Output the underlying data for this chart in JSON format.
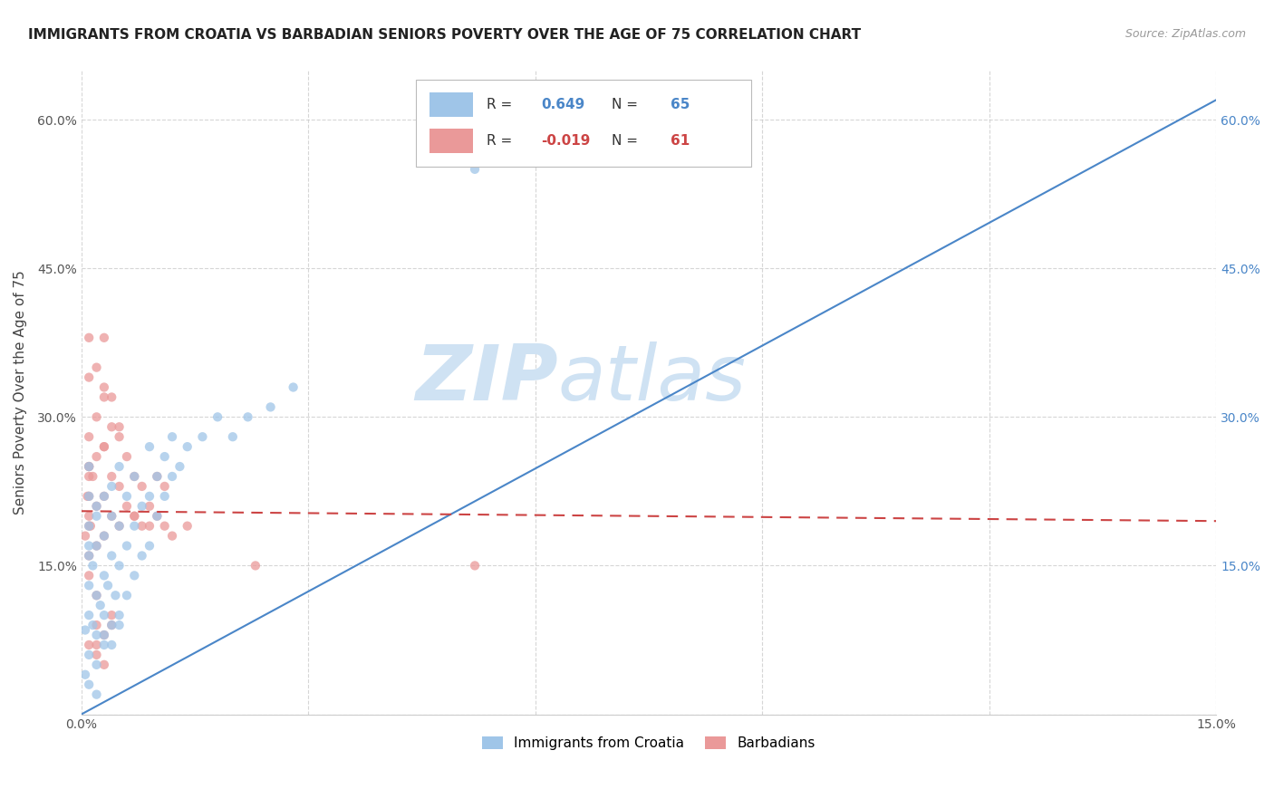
{
  "title": "IMMIGRANTS FROM CROATIA VS BARBADIAN SENIORS POVERTY OVER THE AGE OF 75 CORRELATION CHART",
  "source": "Source: ZipAtlas.com",
  "ylabel": "Seniors Poverty Over the Age of 75",
  "xlim": [
    0.0,
    0.15
  ],
  "ylim": [
    0.0,
    0.65
  ],
  "xticks": [
    0.0,
    0.03,
    0.06,
    0.09,
    0.12,
    0.15
  ],
  "yticks_left": [
    0.0,
    0.15,
    0.3,
    0.45,
    0.6
  ],
  "yticks_right": [
    0.15,
    0.3,
    0.45,
    0.6
  ],
  "xticklabels": [
    "0.0%",
    "",
    "",
    "",
    "",
    "15.0%"
  ],
  "yticklabels_left": [
    "",
    "15.0%",
    "30.0%",
    "45.0%",
    "60.0%"
  ],
  "yticklabels_right": [
    "15.0%",
    "30.0%",
    "45.0%",
    "60.0%"
  ],
  "blue_R": 0.649,
  "blue_N": 65,
  "pink_R": -0.019,
  "pink_N": 61,
  "blue_color": "#9fc5e8",
  "pink_color": "#ea9999",
  "blue_line_color": "#4a86c8",
  "pink_line_color": "#cc4444",
  "pink_line_dash": [
    6,
    4
  ],
  "grid_color": "#cccccc",
  "background_color": "#ffffff",
  "watermark_color": "#cfe2f3",
  "blue_line_x": [
    0.0,
    0.15
  ],
  "blue_line_y": [
    0.0,
    0.62
  ],
  "pink_line_x": [
    0.0,
    0.15
  ],
  "pink_line_y": [
    0.205,
    0.195
  ],
  "legend_label_blue": "Immigrants from Croatia",
  "legend_label_pink": "Barbadians",
  "blue_scatter_x": [
    0.0005,
    0.001,
    0.001,
    0.001,
    0.0015,
    0.0015,
    0.002,
    0.002,
    0.002,
    0.002,
    0.0025,
    0.003,
    0.003,
    0.003,
    0.003,
    0.003,
    0.0035,
    0.004,
    0.004,
    0.004,
    0.004,
    0.0045,
    0.005,
    0.005,
    0.005,
    0.005,
    0.006,
    0.006,
    0.006,
    0.007,
    0.007,
    0.007,
    0.008,
    0.008,
    0.009,
    0.009,
    0.009,
    0.01,
    0.01,
    0.011,
    0.011,
    0.012,
    0.012,
    0.013,
    0.014,
    0.016,
    0.018,
    0.02,
    0.022,
    0.025,
    0.028,
    0.0005,
    0.001,
    0.001,
    0.002,
    0.003,
    0.004,
    0.005,
    0.001,
    0.001,
    0.001,
    0.002,
    0.001,
    0.052,
    0.002
  ],
  "blue_scatter_y": [
    0.085,
    0.1,
    0.13,
    0.16,
    0.09,
    0.15,
    0.08,
    0.12,
    0.17,
    0.2,
    0.11,
    0.07,
    0.1,
    0.14,
    0.18,
    0.22,
    0.13,
    0.09,
    0.16,
    0.2,
    0.23,
    0.12,
    0.1,
    0.15,
    0.19,
    0.25,
    0.12,
    0.17,
    0.22,
    0.14,
    0.19,
    0.24,
    0.16,
    0.21,
    0.17,
    0.22,
    0.27,
    0.2,
    0.24,
    0.22,
    0.26,
    0.24,
    0.28,
    0.25,
    0.27,
    0.28,
    0.3,
    0.28,
    0.3,
    0.31,
    0.33,
    0.04,
    0.03,
    0.06,
    0.05,
    0.08,
    0.07,
    0.09,
    0.19,
    0.22,
    0.25,
    0.21,
    0.17,
    0.55,
    0.02
  ],
  "pink_scatter_x": [
    0.0005,
    0.0008,
    0.001,
    0.001,
    0.001,
    0.0012,
    0.0015,
    0.002,
    0.002,
    0.002,
    0.002,
    0.003,
    0.003,
    0.003,
    0.003,
    0.004,
    0.004,
    0.004,
    0.005,
    0.005,
    0.005,
    0.006,
    0.006,
    0.007,
    0.007,
    0.008,
    0.008,
    0.009,
    0.01,
    0.01,
    0.011,
    0.011,
    0.012,
    0.001,
    0.001,
    0.002,
    0.003,
    0.003,
    0.004,
    0.001,
    0.001,
    0.002,
    0.001,
    0.001,
    0.001,
    0.023,
    0.052,
    0.003,
    0.002,
    0.002,
    0.003,
    0.004,
    0.005,
    0.007,
    0.009,
    0.014,
    0.001,
    0.001,
    0.002,
    0.003,
    0.004
  ],
  "pink_scatter_y": [
    0.18,
    0.22,
    0.2,
    0.25,
    0.28,
    0.19,
    0.24,
    0.17,
    0.21,
    0.26,
    0.3,
    0.18,
    0.22,
    0.27,
    0.32,
    0.2,
    0.24,
    0.29,
    0.19,
    0.23,
    0.28,
    0.21,
    0.26,
    0.2,
    0.24,
    0.19,
    0.23,
    0.21,
    0.2,
    0.24,
    0.19,
    0.23,
    0.18,
    0.34,
    0.38,
    0.35,
    0.33,
    0.27,
    0.1,
    0.14,
    0.16,
    0.12,
    0.22,
    0.19,
    0.24,
    0.15,
    0.15,
    0.08,
    0.07,
    0.09,
    0.38,
    0.32,
    0.29,
    0.2,
    0.19,
    0.19,
    0.25,
    0.07,
    0.06,
    0.05,
    0.09
  ]
}
